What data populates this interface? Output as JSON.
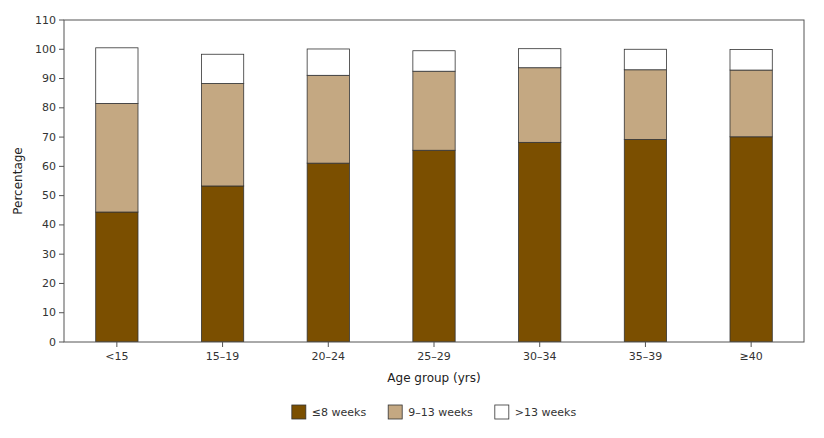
{
  "chart_data": {
    "type": "bar",
    "stacked": true,
    "categories": [
      "<15",
      "15–19",
      "20–24",
      "25–29",
      "30–34",
      "35–39",
      "≥40"
    ],
    "series": [
      {
        "name": "≤8 weeks",
        "color": "#7B4F00",
        "values": [
          44.4,
          53.3,
          61.1,
          65.5,
          68.2,
          69.2,
          70.1
        ]
      },
      {
        "name": "9–13 weeks",
        "color": "#C4A882",
        "values": [
          37.1,
          35.0,
          30.0,
          27.0,
          25.5,
          23.8,
          22.8
        ]
      },
      {
        "name": ">13 weeks",
        "color": "#ffffff",
        "values": [
          19.0,
          10.0,
          9.0,
          7.0,
          6.5,
          7.0,
          7.0
        ]
      }
    ],
    "xlabel": "Age group (yrs)",
    "ylabel": "Percentage",
    "ylim": [
      0,
      110
    ],
    "yticks": [
      0,
      10,
      20,
      30,
      40,
      50,
      60,
      70,
      80,
      90,
      100,
      110
    ],
    "grid": false,
    "legend": "bottom"
  }
}
